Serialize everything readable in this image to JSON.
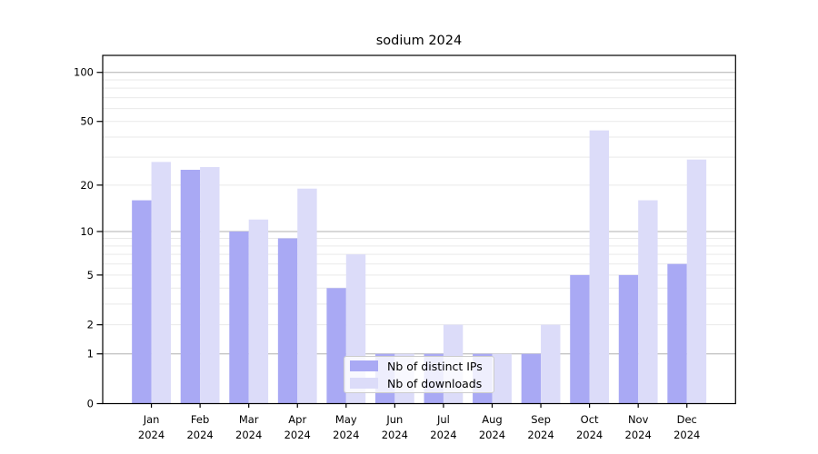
{
  "figure": {
    "title": "sodium 2024"
  },
  "legend": {
    "items": [
      {
        "label": "Nb of distinct IPs",
        "color": "#a9a9f4"
      },
      {
        "label": "Nb of downloads",
        "color": "#dcdcf9"
      }
    ]
  },
  "chart_data": {
    "type": "bar",
    "title": "sodium 2024",
    "categories": [
      "Jan",
      "Feb",
      "Mar",
      "Apr",
      "May",
      "Jun",
      "Jul",
      "Aug",
      "Sep",
      "Oct",
      "Nov",
      "Dec"
    ],
    "x_tick_second_line": "2024",
    "series": [
      {
        "name": "Nb of distinct IPs",
        "color": "#a9a9f4",
        "values": [
          16,
          25,
          10,
          9,
          4,
          1,
          1,
          1,
          1,
          5,
          5,
          6
        ]
      },
      {
        "name": "Nb of downloads",
        "color": "#dcdcf9",
        "values": [
          28,
          26,
          12,
          19,
          7,
          1,
          2,
          1,
          2,
          44,
          16,
          29
        ]
      }
    ],
    "y_scale": "log10(1+v)",
    "ylim": [
      0,
      127
    ],
    "y_tick_labels": [
      "0",
      "1",
      "2",
      "5",
      "10",
      "20",
      "50",
      "100"
    ],
    "y_tick_values": [
      0,
      1,
      2,
      5,
      10,
      20,
      50,
      100
    ],
    "y_major_gridlines": [
      1,
      10,
      100
    ],
    "y_minor_gridlines": [
      2,
      3,
      4,
      5,
      6,
      7,
      8,
      9,
      20,
      30,
      40,
      50,
      60,
      70,
      80,
      90
    ],
    "grid": true,
    "legend_position": "lower center",
    "colors": {
      "axis": "#000000",
      "grid_major": "#b0b0b0",
      "grid_minor": "#e9e9e9",
      "text": "#000000"
    }
  }
}
